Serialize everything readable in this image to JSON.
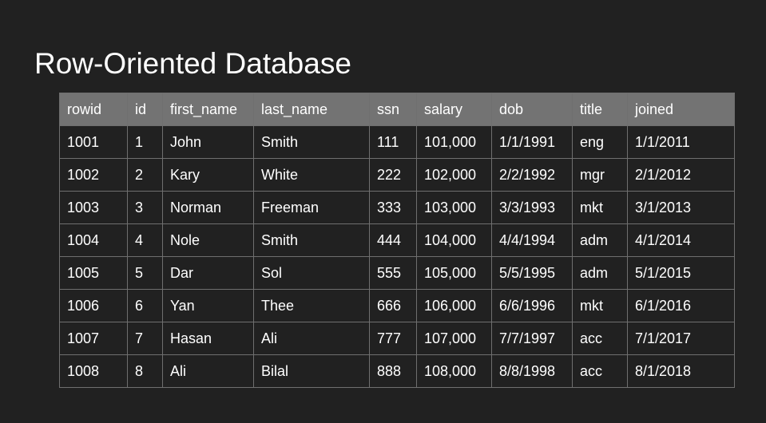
{
  "title": "Row-Oriented Database",
  "table": {
    "columns": [
      "rowid",
      "id",
      "first_name",
      "last_name",
      "ssn",
      "salary",
      "dob",
      "title",
      "joined"
    ],
    "rows": [
      [
        "1001",
        "1",
        "John",
        "Smith",
        "111",
        "101,000",
        "1/1/1991",
        "eng",
        "1/1/2011"
      ],
      [
        "1002",
        "2",
        "Kary",
        "White",
        "222",
        "102,000",
        "2/2/1992",
        "mgr",
        "2/1/2012"
      ],
      [
        "1003",
        "3",
        "Norman",
        "Freeman",
        "333",
        "103,000",
        "3/3/1993",
        "mkt",
        "3/1/2013"
      ],
      [
        "1004",
        "4",
        "Nole",
        "Smith",
        "444",
        "104,000",
        "4/4/1994",
        "adm",
        "4/1/2014"
      ],
      [
        "1005",
        "5",
        "Dar",
        "Sol",
        "555",
        "105,000",
        "5/5/1995",
        "adm",
        "5/1/2015"
      ],
      [
        "1006",
        "6",
        "Yan",
        "Thee",
        "666",
        "106,000",
        "6/6/1996",
        "mkt",
        "6/1/2016"
      ],
      [
        "1007",
        "7",
        "Hasan",
        "Ali",
        "777",
        "107,000",
        "7/7/1997",
        "acc",
        "7/1/2017"
      ],
      [
        "1008",
        "8",
        "Ali",
        "Bilal",
        "888",
        "108,000",
        "8/8/1998",
        "acc",
        "8/1/2018"
      ]
    ]
  },
  "colors": {
    "background": "#212121",
    "header_background": "#737373",
    "grid_line": "#6f6f6f",
    "text": "#ffffff"
  }
}
